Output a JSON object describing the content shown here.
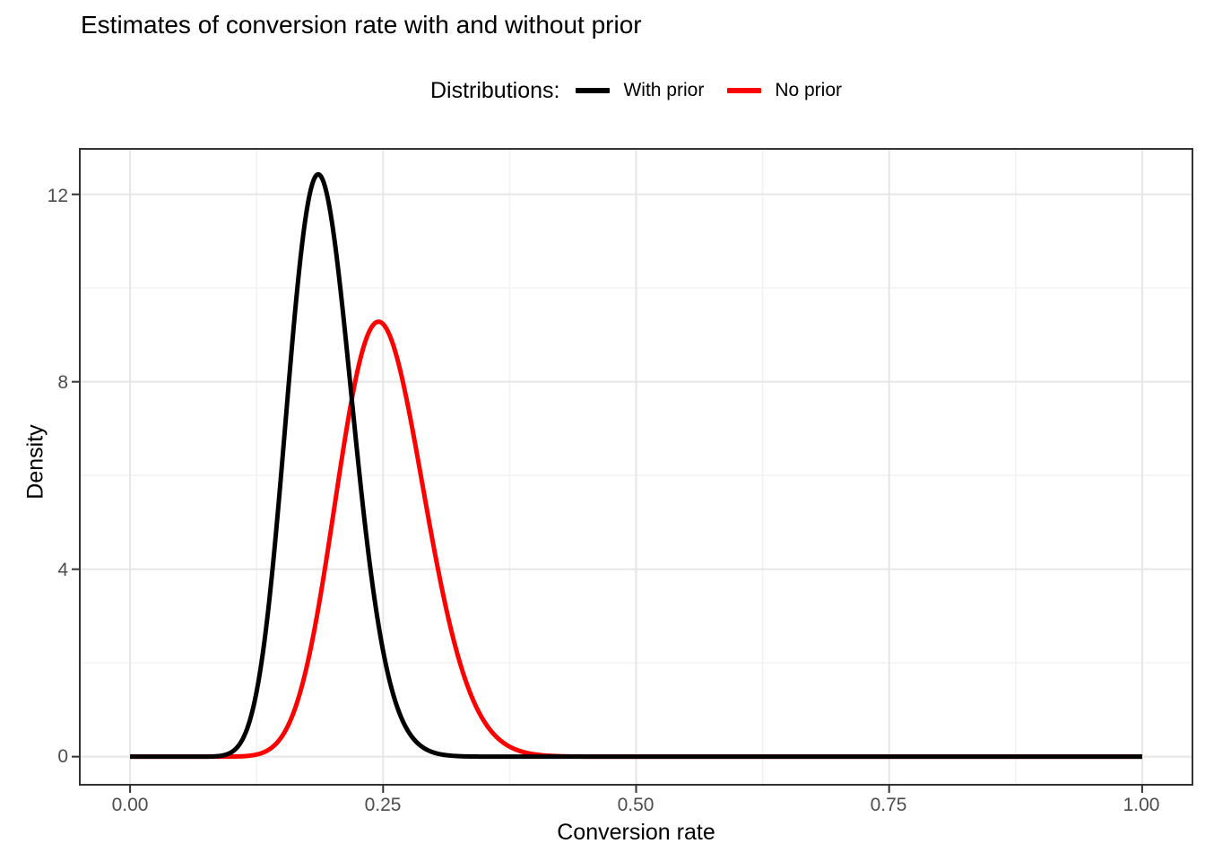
{
  "page": {
    "background": "#FFFFFF"
  },
  "chart_data": {
    "type": "line",
    "subtype": "density-curves",
    "title": "Estimates of conversion rate with and without prior",
    "legend_title": "Distributions:",
    "xlabel": "Conversion rate",
    "ylabel": "Density",
    "x_ticks": [
      "0.00",
      "0.25",
      "0.50",
      "0.75",
      "1.00"
    ],
    "x_tick_values": [
      0,
      0.25,
      0.5,
      0.75,
      1.0
    ],
    "x_minor_values": [
      0.125,
      0.375,
      0.625,
      0.875
    ],
    "y_ticks": [
      "0",
      "4",
      "8",
      "12"
    ],
    "y_tick_values": [
      0,
      4,
      8,
      12
    ],
    "y_minor_values": [
      2,
      6,
      10
    ],
    "xlim": [
      -0.0497,
      1.0497
    ],
    "ylim": [
      -0.6,
      12.97
    ],
    "grid": "on",
    "legend_position": "top-center",
    "series": [
      {
        "name": "With prior",
        "color": "#000000",
        "distribution": "beta",
        "alpha": 28.1,
        "beta": 119.7,
        "x_range": [
          0,
          1
        ],
        "peak_x": 0.186,
        "peak_y": 12.4
      },
      {
        "name": "No prior",
        "color": "#FF0000",
        "distribution": "beta",
        "alpha": 25.3,
        "beta": 75.7,
        "x_range": [
          0,
          1
        ],
        "peak_x": 0.246,
        "peak_y": 9.2
      }
    ],
    "draw_order": [
      1,
      0
    ],
    "style": {
      "curve_width": 5,
      "grid_major_color": "#E6E6E6",
      "grid_minor_color": "#F2F2F2",
      "panel_border_color": "#333333",
      "tick_color": "#333333",
      "axis_text_color": "#4D4D4D"
    }
  }
}
